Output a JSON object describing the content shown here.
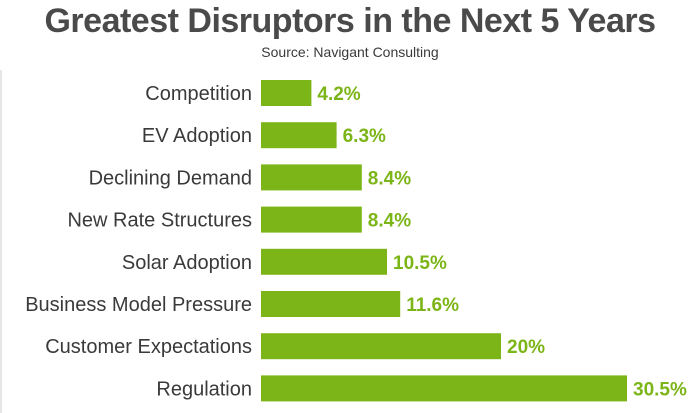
{
  "title": "Greatest Disruptors in the Next 5 Years",
  "subtitle": "Source: Navigant Consulting",
  "colors": {
    "bar": "#7cb518",
    "value_label": "#7cb518",
    "axis": "#cccccc"
  },
  "chart_data": {
    "type": "bar",
    "orientation": "horizontal",
    "title": "Greatest Disruptors in the Next 5 Years",
    "subtitle": "Source: Navigant Consulting",
    "categories": [
      "Competition",
      "EV Adoption",
      "Declining Demand",
      "New Rate Structures",
      "Solar Adoption",
      "Business Model Pressure",
      "Customer Expectations",
      "Regulation"
    ],
    "values": [
      4.2,
      6.3,
      8.4,
      8.4,
      10.5,
      11.6,
      20,
      30.5
    ],
    "value_labels": [
      "4.2%",
      "6.3%",
      "8.4%",
      "8.4%",
      "10.5%",
      "11.6%",
      "20%",
      "30.5%"
    ],
    "xlim": [
      0,
      30.5
    ],
    "xlabel": "",
    "ylabel": "",
    "grid": false,
    "legend": "none"
  }
}
